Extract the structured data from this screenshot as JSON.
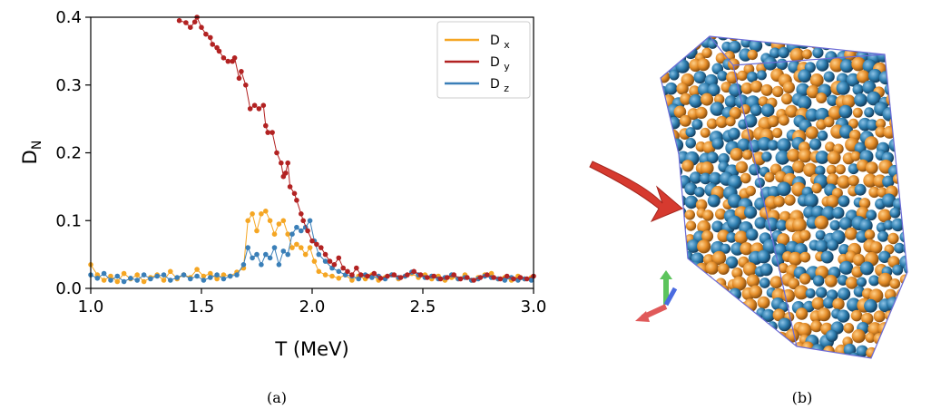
{
  "captions": {
    "a": "(a)",
    "b": "(b)"
  },
  "chart_data": {
    "type": "line",
    "xlabel": "T (MeV)",
    "ylabel": {
      "main": "D",
      "sub": "N"
    },
    "xlim": [
      1.0,
      3.0
    ],
    "ylim": [
      0.0,
      0.4
    ],
    "xticks": [
      "1.0",
      "1.5",
      "2.0",
      "2.5",
      "3.0"
    ],
    "yticks": [
      "0.0",
      "0.1",
      "0.2",
      "0.3",
      "0.4"
    ],
    "grid": false,
    "legend": "top-right",
    "series": [
      {
        "name": "D x",
        "base": "D",
        "sub": "x",
        "color": "#f5a623",
        "points": [
          [
            1.0,
            0.035
          ],
          [
            1.03,
            0.02
          ],
          [
            1.06,
            0.012
          ],
          [
            1.09,
            0.018
          ],
          [
            1.12,
            0.01
          ],
          [
            1.15,
            0.022
          ],
          [
            1.18,
            0.014
          ],
          [
            1.21,
            0.02
          ],
          [
            1.24,
            0.01
          ],
          [
            1.27,
            0.016
          ],
          [
            1.3,
            0.02
          ],
          [
            1.33,
            0.012
          ],
          [
            1.36,
            0.025
          ],
          [
            1.39,
            0.014
          ],
          [
            1.42,
            0.02
          ],
          [
            1.45,
            0.016
          ],
          [
            1.48,
            0.028
          ],
          [
            1.51,
            0.018
          ],
          [
            1.54,
            0.022
          ],
          [
            1.57,
            0.014
          ],
          [
            1.6,
            0.02
          ],
          [
            1.63,
            0.018
          ],
          [
            1.66,
            0.024
          ],
          [
            1.69,
            0.03
          ],
          [
            1.71,
            0.1
          ],
          [
            1.73,
            0.11
          ],
          [
            1.75,
            0.085
          ],
          [
            1.77,
            0.11
          ],
          [
            1.79,
            0.114
          ],
          [
            1.81,
            0.1
          ],
          [
            1.83,
            0.08
          ],
          [
            1.85,
            0.095
          ],
          [
            1.87,
            0.1
          ],
          [
            1.89,
            0.08
          ],
          [
            1.91,
            0.06
          ],
          [
            1.93,
            0.065
          ],
          [
            1.95,
            0.06
          ],
          [
            1.97,
            0.05
          ],
          [
            1.99,
            0.06
          ],
          [
            2.01,
            0.04
          ],
          [
            2.03,
            0.025
          ],
          [
            2.06,
            0.02
          ],
          [
            2.09,
            0.018
          ],
          [
            2.12,
            0.015
          ],
          [
            2.15,
            0.02
          ],
          [
            2.18,
            0.012
          ],
          [
            2.21,
            0.018
          ],
          [
            2.24,
            0.014
          ],
          [
            2.27,
            0.02
          ],
          [
            2.3,
            0.012
          ],
          [
            2.33,
            0.016
          ],
          [
            2.36,
            0.02
          ],
          [
            2.39,
            0.014
          ],
          [
            2.42,
            0.018
          ],
          [
            2.45,
            0.022
          ],
          [
            2.48,
            0.016
          ],
          [
            2.51,
            0.02
          ],
          [
            2.54,
            0.014
          ],
          [
            2.57,
            0.018
          ],
          [
            2.6,
            0.012
          ],
          [
            2.63,
            0.016
          ],
          [
            2.66,
            0.014
          ],
          [
            2.69,
            0.02
          ],
          [
            2.72,
            0.012
          ],
          [
            2.75,
            0.016
          ],
          [
            2.78,
            0.02
          ],
          [
            2.81,
            0.022
          ],
          [
            2.84,
            0.014
          ],
          [
            2.87,
            0.016
          ],
          [
            2.9,
            0.012
          ],
          [
            2.93,
            0.018
          ],
          [
            2.96,
            0.014
          ],
          [
            2.99,
            0.016
          ]
        ]
      },
      {
        "name": "D y",
        "base": "D",
        "sub": "y",
        "color": "#b22222",
        "points": [
          [
            1.4,
            0.395
          ],
          [
            1.43,
            0.392
          ],
          [
            1.45,
            0.385
          ],
          [
            1.47,
            0.393
          ],
          [
            1.48,
            0.4
          ],
          [
            1.5,
            0.385
          ],
          [
            1.52,
            0.375
          ],
          [
            1.54,
            0.37
          ],
          [
            1.55,
            0.36
          ],
          [
            1.57,
            0.355
          ],
          [
            1.58,
            0.35
          ],
          [
            1.6,
            0.34
          ],
          [
            1.62,
            0.335
          ],
          [
            1.64,
            0.335
          ],
          [
            1.65,
            0.34
          ],
          [
            1.67,
            0.31
          ],
          [
            1.68,
            0.32
          ],
          [
            1.7,
            0.3
          ],
          [
            1.72,
            0.265
          ],
          [
            1.74,
            0.27
          ],
          [
            1.76,
            0.265
          ],
          [
            1.78,
            0.27
          ],
          [
            1.79,
            0.24
          ],
          [
            1.8,
            0.23
          ],
          [
            1.82,
            0.23
          ],
          [
            1.84,
            0.2
          ],
          [
            1.86,
            0.185
          ],
          [
            1.87,
            0.165
          ],
          [
            1.88,
            0.17
          ],
          [
            1.89,
            0.185
          ],
          [
            1.9,
            0.15
          ],
          [
            1.92,
            0.14
          ],
          [
            1.93,
            0.13
          ],
          [
            1.95,
            0.11
          ],
          [
            1.96,
            0.1
          ],
          [
            1.98,
            0.085
          ],
          [
            2.0,
            0.07
          ],
          [
            2.02,
            0.065
          ],
          [
            2.04,
            0.06
          ],
          [
            2.06,
            0.05
          ],
          [
            2.08,
            0.04
          ],
          [
            2.1,
            0.035
          ],
          [
            2.12,
            0.045
          ],
          [
            2.14,
            0.03
          ],
          [
            2.16,
            0.025
          ],
          [
            2.18,
            0.02
          ],
          [
            2.2,
            0.03
          ],
          [
            2.22,
            0.02
          ],
          [
            2.25,
            0.018
          ],
          [
            2.28,
            0.022
          ],
          [
            2.31,
            0.015
          ],
          [
            2.34,
            0.018
          ],
          [
            2.37,
            0.02
          ],
          [
            2.4,
            0.016
          ],
          [
            2.43,
            0.02
          ],
          [
            2.46,
            0.025
          ],
          [
            2.49,
            0.02
          ],
          [
            2.52,
            0.016
          ],
          [
            2.55,
            0.018
          ],
          [
            2.58,
            0.014
          ],
          [
            2.61,
            0.016
          ],
          [
            2.64,
            0.02
          ],
          [
            2.67,
            0.014
          ],
          [
            2.7,
            0.016
          ],
          [
            2.73,
            0.012
          ],
          [
            2.76,
            0.016
          ],
          [
            2.79,
            0.02
          ],
          [
            2.82,
            0.016
          ],
          [
            2.85,
            0.014
          ],
          [
            2.88,
            0.018
          ],
          [
            2.91,
            0.014
          ],
          [
            2.94,
            0.016
          ],
          [
            2.97,
            0.014
          ],
          [
            3.0,
            0.018
          ]
        ]
      },
      {
        "name": "D z",
        "base": "D",
        "sub": "z",
        "color": "#3a7fb8",
        "points": [
          [
            1.0,
            0.02
          ],
          [
            1.03,
            0.015
          ],
          [
            1.06,
            0.022
          ],
          [
            1.09,
            0.012
          ],
          [
            1.12,
            0.018
          ],
          [
            1.15,
            0.01
          ],
          [
            1.18,
            0.015
          ],
          [
            1.21,
            0.012
          ],
          [
            1.24,
            0.02
          ],
          [
            1.27,
            0.014
          ],
          [
            1.3,
            0.018
          ],
          [
            1.33,
            0.02
          ],
          [
            1.36,
            0.012
          ],
          [
            1.39,
            0.016
          ],
          [
            1.42,
            0.02
          ],
          [
            1.45,
            0.014
          ],
          [
            1.48,
            0.018
          ],
          [
            1.51,
            0.012
          ],
          [
            1.54,
            0.016
          ],
          [
            1.57,
            0.02
          ],
          [
            1.6,
            0.014
          ],
          [
            1.63,
            0.018
          ],
          [
            1.66,
            0.02
          ],
          [
            1.69,
            0.035
          ],
          [
            1.71,
            0.06
          ],
          [
            1.73,
            0.045
          ],
          [
            1.75,
            0.05
          ],
          [
            1.77,
            0.035
          ],
          [
            1.79,
            0.05
          ],
          [
            1.81,
            0.045
          ],
          [
            1.83,
            0.06
          ],
          [
            1.85,
            0.035
          ],
          [
            1.87,
            0.055
          ],
          [
            1.89,
            0.05
          ],
          [
            1.91,
            0.08
          ],
          [
            1.93,
            0.09
          ],
          [
            1.95,
            0.085
          ],
          [
            1.97,
            0.09
          ],
          [
            1.99,
            0.1
          ],
          [
            2.01,
            0.07
          ],
          [
            2.03,
            0.05
          ],
          [
            2.06,
            0.04
          ],
          [
            2.09,
            0.03
          ],
          [
            2.12,
            0.025
          ],
          [
            2.15,
            0.02
          ],
          [
            2.18,
            0.018
          ],
          [
            2.21,
            0.014
          ],
          [
            2.24,
            0.02
          ],
          [
            2.27,
            0.016
          ],
          [
            2.3,
            0.018
          ],
          [
            2.33,
            0.014
          ],
          [
            2.36,
            0.02
          ],
          [
            2.39,
            0.016
          ],
          [
            2.42,
            0.018
          ],
          [
            2.45,
            0.024
          ],
          [
            2.48,
            0.02
          ],
          [
            2.51,
            0.016
          ],
          [
            2.54,
            0.018
          ],
          [
            2.57,
            0.014
          ],
          [
            2.6,
            0.016
          ],
          [
            2.63,
            0.02
          ],
          [
            2.66,
            0.014
          ],
          [
            2.69,
            0.016
          ],
          [
            2.72,
            0.012
          ],
          [
            2.75,
            0.014
          ],
          [
            2.78,
            0.018
          ],
          [
            2.81,
            0.016
          ],
          [
            2.84,
            0.014
          ],
          [
            2.87,
            0.012
          ],
          [
            2.9,
            0.016
          ],
          [
            2.93,
            0.012
          ],
          [
            2.96,
            0.014
          ],
          [
            2.99,
            0.012
          ]
        ]
      }
    ]
  },
  "image_panel": {
    "content": "particle-cluster-3d",
    "colors": {
      "sphere_a": "#e58e2a",
      "sphere_b": "#2f7fb0",
      "arrow": "#d63a2f",
      "box": "#6b6bd6"
    }
  }
}
